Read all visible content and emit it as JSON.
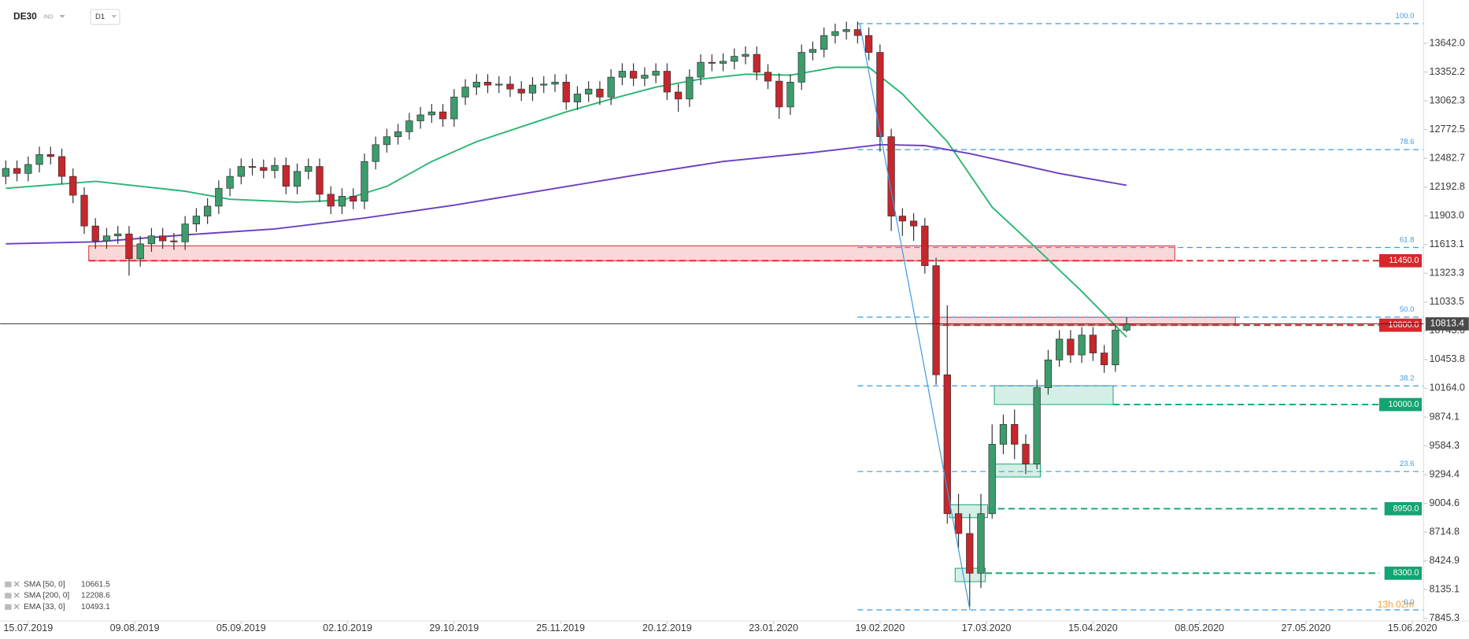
{
  "chart_data": {
    "type": "candlestick",
    "title": "DE30",
    "instrument_type": "IND",
    "interval": "D1",
    "countdown": "13h 02m",
    "up_color": "#3c9c6c",
    "down_color": "#c6262c",
    "open": [
      12300,
      12380,
      12330,
      12420,
      12520,
      12500,
      12300,
      12110,
      11800,
      11650,
      11700,
      11720,
      11470,
      11620,
      11700,
      11650,
      11640,
      11820,
      11900,
      12000,
      12180,
      12300,
      12400,
      12390,
      12360,
      12410,
      12200,
      12350,
      12400,
      12120,
      12000,
      12100,
      12050,
      12450,
      12620,
      12700,
      12750,
      12860,
      12920,
      12950,
      12880,
      13100,
      13200,
      13250,
      13220,
      13230,
      13180,
      13140,
      13220,
      13230,
      13250,
      13050,
      13130,
      13180,
      13100,
      13300,
      13360,
      13290,
      13320,
      13360,
      13150,
      13080,
      13300,
      13450,
      13440,
      13460,
      13510,
      13530,
      13350,
      13260,
      13000,
      13250,
      13550,
      13580,
      13720,
      13760,
      13780,
      13720,
      13550,
      12700,
      11900,
      11850,
      11800,
      11400,
      10300,
      8900,
      8700,
      8300,
      8900,
      9600,
      9800,
      9600,
      9400,
      10170,
      10450,
      10660,
      10500,
      10700,
      10520,
      10400,
      10750
    ],
    "high": [
      12460,
      12460,
      12500,
      12600,
      12600,
      12580,
      12380,
      12190,
      11880,
      11780,
      11800,
      11800,
      11700,
      11780,
      11780,
      11730,
      11900,
      11980,
      12080,
      12260,
      12380,
      12480,
      12480,
      12470,
      12490,
      12490,
      12430,
      12480,
      12480,
      12200,
      12180,
      12180,
      12530,
      12700,
      12780,
      12830,
      12940,
      13000,
      13030,
      13030,
      13180,
      13280,
      13330,
      13330,
      13310,
      13310,
      13260,
      13300,
      13310,
      13330,
      13330,
      13210,
      13260,
      13260,
      13380,
      13440,
      13440,
      13400,
      13440,
      13440,
      13230,
      13380,
      13530,
      13530,
      13540,
      13590,
      13610,
      13610,
      13430,
      13340,
      13330,
      13630,
      13660,
      13800,
      13840,
      13860,
      13860,
      13800,
      13630,
      12780,
      11980,
      11930,
      11880,
      11480,
      11000,
      9100,
      8900,
      9100,
      9800,
      9900,
      9950,
      9700,
      10250,
      10550,
      10750,
      10750,
      10780,
      10780,
      10600,
      10800,
      10880
    ],
    "low": [
      12220,
      12250,
      12250,
      12340,
      12420,
      12220,
      12030,
      11720,
      11570,
      11570,
      11620,
      11300,
      11390,
      11540,
      11570,
      11560,
      11560,
      11740,
      11820,
      11920,
      12100,
      12220,
      12310,
      12280,
      12280,
      12120,
      12120,
      12270,
      12040,
      11920,
      11920,
      11970,
      11970,
      12370,
      12540,
      12620,
      12670,
      12780,
      12840,
      12800,
      12800,
      13020,
      13120,
      13140,
      13140,
      13100,
      13060,
      13060,
      13140,
      13150,
      12970,
      12970,
      13050,
      13020,
      13020,
      13220,
      13210,
      13210,
      13240,
      13070,
      12950,
      13000,
      13220,
      13360,
      13360,
      13380,
      13430,
      13270,
      13180,
      12880,
      12920,
      13170,
      13470,
      13500,
      13640,
      13680,
      13640,
      13470,
      12550,
      11750,
      11700,
      11650,
      11320,
      10200,
      8800,
      8550,
      7960,
      8150,
      8850,
      9500,
      9450,
      9300,
      9350,
      10100,
      10380,
      10420,
      10420,
      10440,
      10320,
      10330,
      10730
    ],
    "close": [
      12380,
      12330,
      12420,
      12520,
      12500,
      12300,
      12110,
      11800,
      11650,
      11700,
      11720,
      11470,
      11620,
      11700,
      11650,
      11640,
      11820,
      11900,
      12000,
      12180,
      12300,
      12400,
      12390,
      12360,
      12410,
      12200,
      12350,
      12400,
      12120,
      12000,
      12100,
      12050,
      12450,
      12620,
      12700,
      12750,
      12860,
      12920,
      12950,
      12880,
      13100,
      13200,
      13250,
      13220,
      13230,
      13180,
      13140,
      13220,
      13230,
      13250,
      13050,
      13130,
      13180,
      13100,
      13300,
      13360,
      13290,
      13320,
      13360,
      13150,
      13080,
      13300,
      13450,
      13440,
      13460,
      13510,
      13530,
      13350,
      13260,
      13000,
      13250,
      13550,
      13580,
      13720,
      13760,
      13780,
      13720,
      13550,
      12700,
      11900,
      11850,
      11800,
      11400,
      10300,
      8900,
      8700,
      8300,
      8900,
      9600,
      9800,
      9600,
      9400,
      10170,
      10450,
      10660,
      10500,
      10700,
      10520,
      10400,
      10750,
      10813
    ],
    "indicators": [
      {
        "name": "SMA [50, 0]",
        "last": 10661.5,
        "color": "#2bb673",
        "x": [
          0,
          8,
          16,
          20,
          26,
          30,
          34,
          38,
          42,
          46,
          50,
          54,
          58,
          62,
          66,
          70,
          74,
          77,
          80,
          84,
          88,
          92,
          96,
          100
        ],
        "values": [
          12180,
          12250,
          12150,
          12070,
          12040,
          12060,
          12200,
          12450,
          12650,
          12800,
          12950,
          13080,
          13200,
          13280,
          13330,
          13320,
          13400,
          13400,
          13130,
          12650,
          11990,
          11570,
          11140,
          10680
        ]
      },
      {
        "name": "SMA [200, 0]",
        "last": 12208.6,
        "color": "#6a3fc1",
        "x": [
          0,
          8,
          16,
          24,
          32,
          40,
          48,
          56,
          64,
          72,
          78,
          82,
          86,
          90,
          94,
          100
        ],
        "values": [
          11620,
          11640,
          11710,
          11770,
          11880,
          12010,
          12160,
          12310,
          12450,
          12540,
          12620,
          12610,
          12530,
          12430,
          12330,
          12210
        ]
      },
      {
        "name": "EMA [33, 0]",
        "last": 10493.1
      }
    ],
    "fibonacci": {
      "color": "#3d9be0",
      "start_x": 76,
      "levels": [
        {
          "value": 13840,
          "label": "100.0"
        },
        {
          "value": 12570,
          "label": "78.6"
        },
        {
          "value": 11583,
          "label": "61.8"
        },
        {
          "value": 10881,
          "label": "50.0"
        },
        {
          "value": 10188,
          "label": "38.2"
        },
        {
          "value": 9325,
          "label": "23.6"
        },
        {
          "value": 7930,
          "label": "0.0"
        }
      ]
    },
    "levels": [
      {
        "value": 11450,
        "label": "11450.0",
        "color": "#d9262b",
        "start_x": 7.4
      },
      {
        "value": 10800,
        "label": "10800.0",
        "color": "#d9262b",
        "start_x": 82.7
      },
      {
        "value": 10000,
        "label": "10000.0",
        "color": "#13a571",
        "start_x": 98.8
      },
      {
        "value": 8950,
        "label": "8950.0",
        "color": "#13a571",
        "start_x": 87.6
      },
      {
        "value": 8300,
        "label": "8300.0",
        "color": "#13a571",
        "start_x": 87.4
      }
    ],
    "zones": [
      {
        "x": [
          7.4,
          104.3
        ],
        "y": [
          11450,
          11600
        ],
        "color": "#d9262b"
      },
      {
        "x": [
          82.7,
          109.7
        ],
        "y": [
          10800,
          10880
        ],
        "color": "#d9262b"
      },
      {
        "x": [
          88.2,
          98.8
        ],
        "y": [
          10000,
          10190
        ],
        "color": "#13a571"
      },
      {
        "x": [
          88.2,
          92.3
        ],
        "y": [
          9270,
          9400
        ],
        "color": "#13a571"
      },
      {
        "x": [
          84.2,
          87.6
        ],
        "y": [
          8860,
          8990
        ],
        "color": "#13a571"
      },
      {
        "x": [
          84.7,
          87.4
        ],
        "y": [
          8215,
          8350
        ],
        "color": "#13a571"
      }
    ],
    "last_price": 10813.4,
    "xlim": [
      -0.5,
      126.5
    ],
    "ylim": [
      7817,
      14078
    ],
    "xticks": [
      {
        "value": 2,
        "label": "15.07.2019"
      },
      {
        "value": 11.5,
        "label": "09.08.2019"
      },
      {
        "value": 21,
        "label": "05.09.2019"
      },
      {
        "value": 30.5,
        "label": "02.10.2019"
      },
      {
        "value": 40,
        "label": "29.10.2019"
      },
      {
        "value": 49.5,
        "label": "25.11.2019"
      },
      {
        "value": 59,
        "label": "20.12.2019"
      },
      {
        "value": 68.5,
        "label": "23.01.2020"
      },
      {
        "value": 78,
        "label": "19.02.2020"
      },
      {
        "value": 87.5,
        "label": "17.03.2020"
      },
      {
        "value": 97,
        "label": "15.04.2020"
      },
      {
        "value": 106.5,
        "label": "08.05.2020"
      },
      {
        "value": 116,
        "label": "27.05.2020"
      },
      {
        "value": 125.5,
        "label": "15.06.2020"
      }
    ],
    "yticks": [
      {
        "value": 13642.0,
        "label": "13642.0"
      },
      {
        "value": 13352.2,
        "label": "13352.2"
      },
      {
        "value": 13062.3,
        "label": "13062.3"
      },
      {
        "value": 12772.5,
        "label": "12772.5"
      },
      {
        "value": 12482.7,
        "label": "12482.7"
      },
      {
        "value": 12192.8,
        "label": "12192.8"
      },
      {
        "value": 11903.0,
        "label": "11903.0"
      },
      {
        "value": 11613.1,
        "label": "11613.1"
      },
      {
        "value": 11323.3,
        "label": "11323.3"
      },
      {
        "value": 11033.5,
        "label": "11033.5"
      },
      {
        "value": 10743.6,
        "label": "10743.6"
      },
      {
        "value": 10453.8,
        "label": "10453.8"
      },
      {
        "value": 10164.0,
        "label": "10164.0"
      },
      {
        "value": 9874.1,
        "label": "9874.1"
      },
      {
        "value": 9584.3,
        "label": "9584.3"
      },
      {
        "value": 9294.4,
        "label": "9294.4"
      },
      {
        "value": 9004.6,
        "label": "9004.6"
      },
      {
        "value": 8714.8,
        "label": "8714.8"
      },
      {
        "value": 8424.9,
        "label": "8424.9"
      },
      {
        "value": 8135.1,
        "label": "8135.1"
      },
      {
        "value": 7845.3,
        "label": "7845.3"
      }
    ]
  }
}
